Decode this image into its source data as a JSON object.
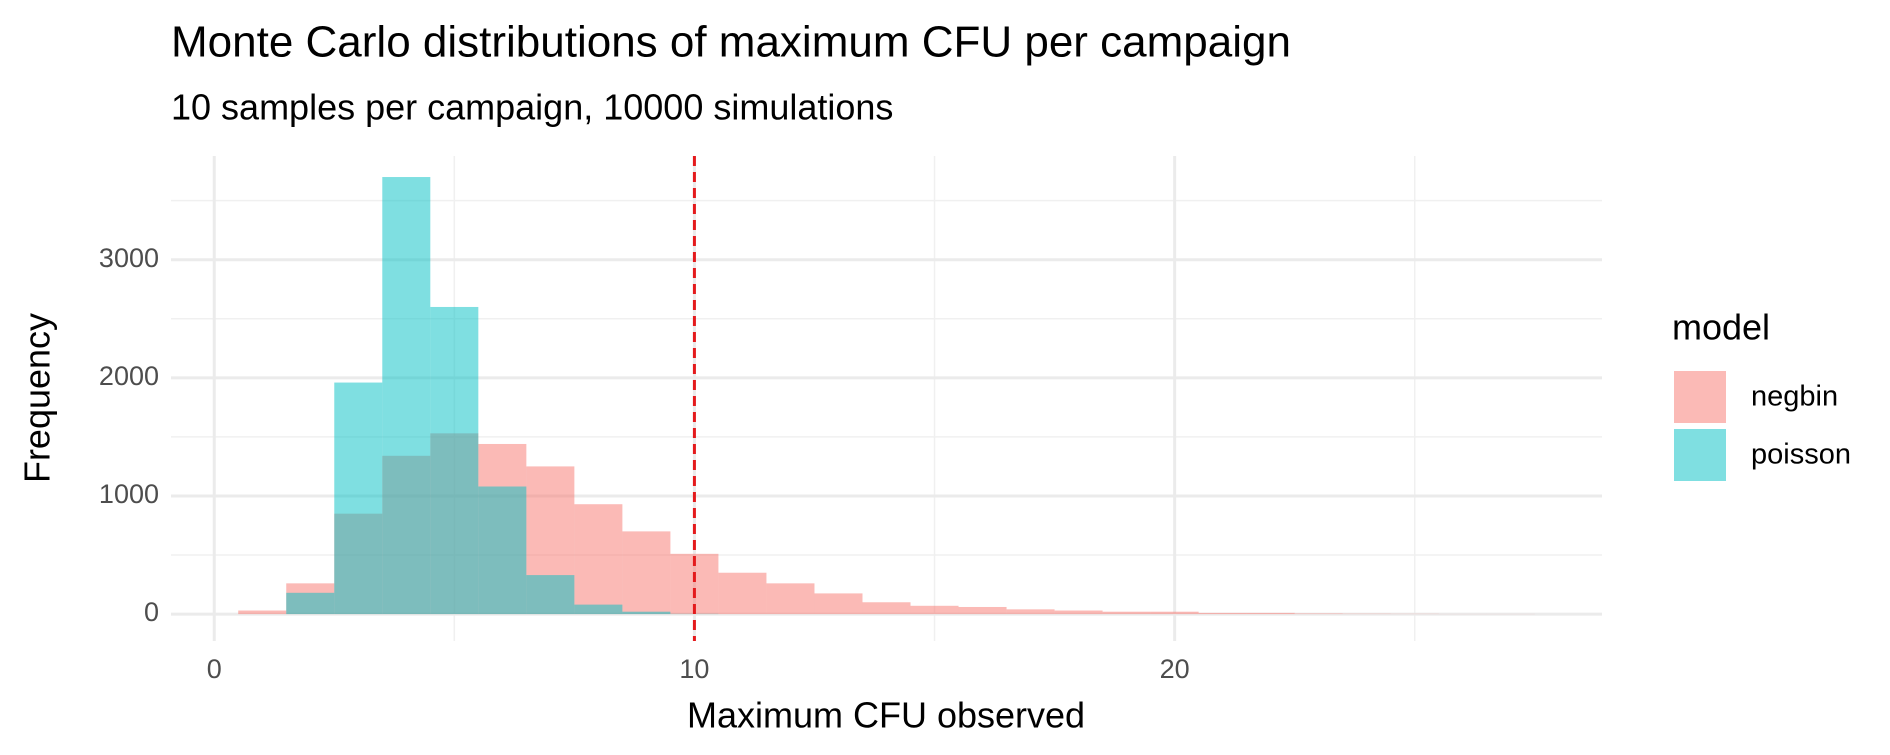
{
  "chart_data": {
    "type": "histogram",
    "title": "Monte Carlo distributions of maximum CFU per campaign",
    "subtitle": "10 samples per campaign, 10000 simulations",
    "x_label": "Maximum CFU observed",
    "y_label": "Frequency",
    "legend_title": "model",
    "legend_position": "right",
    "grid": true,
    "bins": [
      0.5,
      1.5,
      2.5,
      3.5,
      4.5,
      5.5,
      6.5,
      7.5,
      8.5,
      9.5,
      10.5,
      11.5,
      12.5,
      13.5,
      14.5,
      15.5,
      16.5,
      17.5,
      18.5,
      19.5,
      20.5,
      21.5,
      22.5,
      23.5,
      24.5,
      25.5,
      26.5,
      27.5
    ],
    "series": [
      {
        "name": "negbin",
        "color": "#F8766D",
        "values": [
          30,
          260,
          850,
          1340,
          1530,
          1440,
          1250,
          930,
          700,
          510,
          350,
          260,
          175,
          100,
          70,
          60,
          40,
          30,
          20,
          20,
          10,
          10,
          5,
          3,
          2,
          1,
          1
        ]
      },
      {
        "name": "poisson",
        "color": "#00BFC4",
        "values": [
          0,
          180,
          1960,
          3700,
          2600,
          1080,
          330,
          80,
          20,
          2,
          0,
          0,
          0,
          0,
          0,
          0,
          0,
          0,
          0,
          0,
          0,
          0,
          0,
          0,
          0,
          0,
          0
        ]
      }
    ],
    "opacity": 0.5,
    "vline": {
      "x": 10,
      "color": "#E41A1C"
    },
    "xlim": [
      -0.9,
      28.9
    ],
    "xticks": [
      0,
      10,
      20
    ],
    "ylim": [
      -228,
      3878
    ],
    "yticks": [
      0,
      1000,
      2000,
      3000
    ]
  }
}
